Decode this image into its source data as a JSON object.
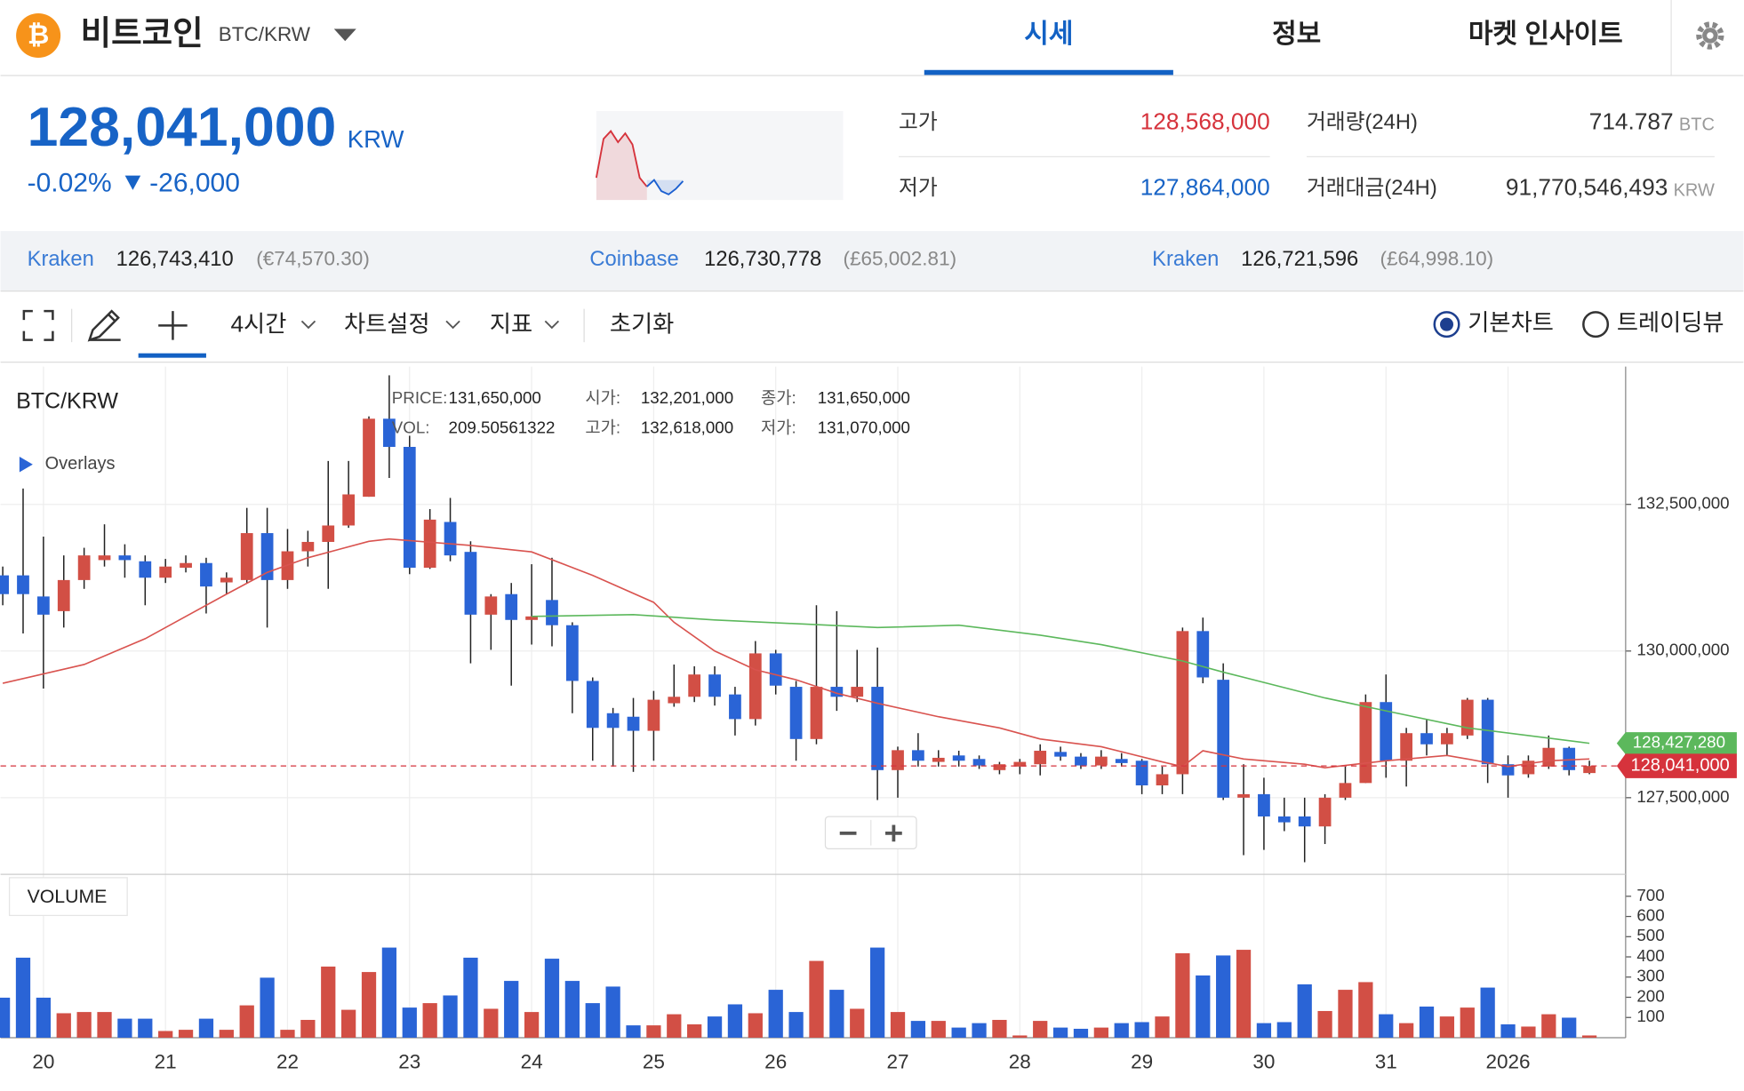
{
  "header": {
    "icon": "₿",
    "name": "비트코인",
    "pair": "BTC/KRW",
    "tabs": [
      "시세",
      "정보",
      "마켓 인사이트"
    ]
  },
  "price": {
    "value": "128,041,000",
    "unit": "KRW",
    "change_pct": "-0.02%",
    "change": "-26,000"
  },
  "sparkline": {
    "values": [
      20,
      55,
      62,
      52,
      60,
      50,
      20,
      12,
      18,
      8,
      5,
      10,
      17
    ],
    "ylim": [
      0,
      80
    ],
    "up_color": "#d6333c",
    "down_color": "#1a5fd0"
  },
  "stats": [
    {
      "label": "고가",
      "value": "128,568,000"
    },
    {
      "label": "저가",
      "value": "127,864,000"
    },
    {
      "label": "거래량(24H)",
      "value": "714.787",
      "unit": "BTC"
    },
    {
      "label": "거래대금(24H)",
      "value": "91,770,546,493",
      "unit": "KRW"
    }
  ],
  "exchanges": [
    {
      "name": "Kraken",
      "price": "126,743,410",
      "fx": "(€74,570.30)"
    },
    {
      "name": "Coinbase",
      "price": "126,730,778",
      "fx": "(£65,002.81)"
    },
    {
      "name": "Kraken",
      "price": "126,721,596",
      "fx": "(£64,998.10)"
    }
  ],
  "toolbar": {
    "interval": "4시간",
    "settings": "차트설정",
    "indicators": "지표",
    "reset": "초기화",
    "basic": "기본차트",
    "tradingview": "트레이딩뷰"
  },
  "tooltip": {
    "price_label": "PRICE:",
    "price": "131,650,000",
    "open_label": "시가:",
    "open": "132,201,000",
    "close_label": "종가:",
    "close": "131,650,000",
    "vol_label": "VOL:",
    "vol": "209.50561322",
    "high_label": "고가:",
    "high": "132,618,000",
    "low_label": "저가:",
    "low": "131,070,000"
  },
  "chart_data": {
    "type": "candlestick",
    "title": "BTC/KRW",
    "overlays_label": "Overlays",
    "volume_label": "VOLUME",
    "up_color": "#d24f45",
    "down_color": "#2a64d6",
    "categories": [
      null,
      null,
      "20",
      null,
      null,
      null,
      null,
      null,
      "21",
      null,
      null,
      null,
      null,
      null,
      "22",
      null,
      null,
      null,
      null,
      null,
      "23",
      null,
      null,
      null,
      null,
      null,
      "24",
      null,
      null,
      null,
      null,
      null,
      "25",
      null,
      null,
      null,
      null,
      null,
      "26",
      null,
      null,
      null,
      null,
      null,
      "27",
      null,
      null,
      null,
      null,
      null,
      "28",
      null,
      null,
      null,
      null,
      null,
      "29",
      null,
      null,
      null,
      null,
      null,
      "30",
      null,
      null,
      null,
      null,
      null,
      "31",
      null,
      null,
      null,
      null,
      null,
      "2026",
      null,
      null,
      null,
      null
    ],
    "open": [
      131290000,
      131290000,
      130930000,
      130680000,
      131210000,
      131550000,
      131630000,
      131530000,
      131250000,
      131420000,
      131500000,
      131170000,
      131210000,
      132010000,
      131210000,
      131700000,
      131860000,
      132140000,
      132630000,
      133960000,
      133480000,
      131420000,
      132200000,
      131690000,
      130620000,
      130970000,
      130530000,
      130870000,
      130440000,
      129490000,
      128940000,
      128880000,
      128640000,
      129110000,
      129220000,
      129600000,
      129260000,
      128840000,
      129960000,
      129390000,
      128500000,
      129390000,
      129220000,
      129390000,
      127970000,
      128310000,
      128110000,
      128220000,
      128160000,
      127970000,
      128030000,
      128070000,
      128280000,
      128200000,
      128050000,
      128160000,
      128130000,
      127710000,
      127900000,
      130340000,
      129510000,
      127500000,
      127560000,
      127180000,
      127180000,
      127010000,
      127500000,
      127750000,
      129130000,
      128130000,
      128600000,
      128410000,
      128560000,
      129170000,
      128070000,
      127900000,
      128030000,
      128350000,
      127920000
    ],
    "high": [
      131440000,
      132770000,
      131950000,
      131630000,
      131760000,
      132160000,
      131820000,
      131630000,
      131570000,
      131630000,
      131590000,
      131340000,
      132440000,
      132440000,
      132080000,
      132050000,
      133240000,
      133240000,
      134000000,
      134700000,
      133670000,
      132420000,
      132610000,
      131870000,
      130970000,
      131160000,
      131480000,
      131590000,
      130490000,
      129550000,
      129030000,
      129200000,
      129320000,
      129770000,
      129740000,
      129740000,
      129390000,
      130170000,
      130020000,
      129490000,
      130780000,
      130680000,
      130020000,
      130060000,
      128370000,
      128600000,
      128310000,
      128300000,
      128220000,
      128110000,
      128160000,
      128410000,
      128370000,
      128260000,
      128310000,
      128260000,
      128160000,
      128030000,
      130400000,
      130570000,
      129790000,
      128070000,
      127840000,
      127500000,
      127500000,
      127560000,
      128030000,
      129260000,
      129600000,
      128690000,
      128830000,
      128690000,
      129200000,
      129200000,
      128220000,
      128220000,
      128560000,
      128370000,
      128130000
    ],
    "low": [
      130780000,
      130300000,
      129360000,
      130400000,
      131060000,
      131440000,
      131250000,
      130780000,
      131160000,
      131340000,
      130640000,
      130970000,
      131160000,
      130400000,
      131060000,
      131440000,
      131060000,
      132100000,
      132630000,
      132950000,
      131310000,
      131400000,
      131530000,
      129790000,
      130020000,
      129410000,
      130110000,
      130080000,
      128940000,
      128130000,
      128030000,
      127940000,
      128130000,
      129050000,
      129130000,
      129070000,
      128560000,
      128730000,
      129260000,
      128130000,
      128410000,
      128980000,
      129130000,
      127460000,
      127500000,
      128030000,
      128030000,
      128030000,
      127990000,
      127900000,
      127900000,
      127880000,
      128130000,
      127990000,
      127990000,
      128030000,
      127560000,
      127560000,
      127560000,
      129450000,
      127460000,
      126520000,
      126610000,
      126930000,
      126400000,
      126710000,
      127460000,
      127750000,
      127840000,
      127690000,
      128220000,
      128220000,
      128500000,
      127750000,
      127500000,
      127840000,
      127990000,
      127880000,
      127900000
    ],
    "close": [
      130970000,
      130970000,
      130620000,
      131210000,
      131630000,
      131630000,
      131550000,
      131250000,
      131440000,
      131500000,
      131100000,
      131250000,
      132010000,
      131210000,
      131700000,
      131860000,
      132140000,
      132670000,
      133960000,
      133480000,
      131420000,
      132240000,
      131630000,
      130620000,
      130930000,
      130530000,
      130590000,
      130440000,
      129490000,
      128690000,
      128690000,
      128640000,
      129170000,
      129220000,
      129600000,
      129220000,
      128840000,
      129960000,
      129410000,
      128500000,
      129390000,
      129220000,
      129390000,
      127970000,
      128310000,
      128130000,
      128180000,
      128130000,
      128050000,
      128070000,
      128110000,
      128300000,
      128200000,
      128050000,
      128200000,
      128090000,
      127710000,
      127900000,
      130340000,
      129550000,
      127500000,
      127560000,
      127180000,
      127080000,
      127010000,
      127500000,
      127750000,
      129130000,
      128130000,
      128600000,
      128410000,
      128600000,
      129170000,
      128070000,
      127880000,
      128130000,
      128350000,
      127970000,
      128040000
    ],
    "volume": [
      198,
      396,
      198,
      121,
      127,
      127,
      94,
      94,
      33,
      39,
      94,
      39,
      160,
      297,
      39,
      88,
      352,
      138,
      325,
      446,
      149,
      171,
      209,
      396,
      143,
      281,
      127,
      391,
      281,
      171,
      253,
      61,
      61,
      116,
      66,
      105,
      165,
      121,
      237,
      127,
      380,
      237,
      143,
      446,
      127,
      83,
      83,
      50,
      72,
      88,
      11,
      83,
      50,
      44,
      50,
      72,
      77,
      105,
      418,
      308,
      407,
      435,
      72,
      77,
      264,
      132,
      237,
      275,
      116,
      72,
      154,
      105,
      149,
      248,
      66,
      55,
      116,
      99,
      11
    ],
    "overlays": [
      {
        "color": "#d9534f",
        "index": [
          0,
          4,
          7,
          9,
          11,
          13,
          15,
          18,
          19,
          23,
          26,
          29,
          32,
          33,
          35,
          37,
          39,
          41,
          43,
          46,
          49,
          51,
          54,
          57,
          58,
          59,
          61,
          64,
          65,
          68,
          71,
          72,
          74,
          76,
          78
        ],
        "values": [
          129450000,
          129770000,
          130210000,
          130590000,
          130970000,
          131340000,
          131590000,
          131870000,
          131910000,
          131800000,
          131690000,
          131290000,
          130830000,
          130490000,
          130000000,
          129680000,
          129510000,
          129280000,
          129110000,
          128880000,
          128690000,
          128500000,
          128370000,
          128110000,
          128030000,
          128300000,
          128160000,
          128070000,
          128010000,
          128130000,
          128220000,
          128160000,
          128030000,
          128130000,
          128160000
        ]
      },
      {
        "color": "#5cb85c",
        "index": [
          26,
          31,
          35,
          40,
          43,
          47,
          51,
          54,
          58,
          60,
          65,
          68,
          72,
          78
        ],
        "values": [
          130590000,
          130620000,
          130530000,
          130450000,
          130400000,
          130440000,
          130270000,
          130110000,
          129830000,
          129640000,
          129200000,
          128980000,
          128690000,
          128427280
        ],
        "last_label": "128,427,280"
      }
    ],
    "last_price": {
      "value": 128041000,
      "label": "128,041,000"
    },
    "ylim": [
      126212000,
      134848000
    ],
    "yticks": [
      {
        "value": 127500000,
        "label": "127,500,000"
      },
      {
        "value": 130000000,
        "label": "130,000,000"
      },
      {
        "value": 132500000,
        "label": "132,500,000"
      }
    ],
    "vol_ylim": [
      0,
      803
    ],
    "vol_ticks": [
      100,
      200,
      300,
      400,
      500,
      600,
      700
    ],
    "grid": true
  }
}
